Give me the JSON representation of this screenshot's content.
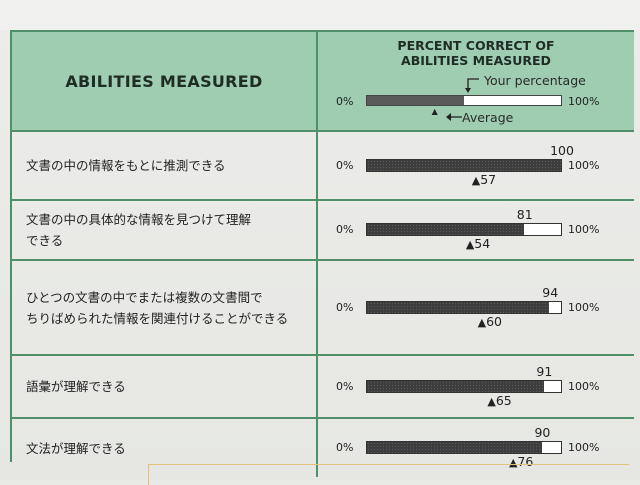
{
  "header": {
    "abilities_title": "ABILITIES MEASURED",
    "percent_title_line1": "PERCENT CORRECT OF",
    "percent_title_line2": "ABILITIES MEASURED",
    "your_percentage": "Your percentage",
    "average": "Average",
    "min_label": "0%",
    "max_label": "100%",
    "legend_your_fraction": 0.5,
    "legend_avg_fraction": 0.35
  },
  "colors": {
    "header_bg": "#9ecdb1",
    "rule": "#4f8f6a",
    "bar_fill": "#3d3d3d"
  },
  "rows": [
    {
      "label": "文書の中の情報をもとに推測できる",
      "label_line2": "",
      "your": "100",
      "avg": "57",
      "your_value": 100,
      "avg_value": 57
    },
    {
      "label": "文書の中の具体的な情報を見つけて理解",
      "label_line2": "できる",
      "your": "81",
      "avg": "54",
      "your_value": 81,
      "avg_value": 54
    },
    {
      "label": "ひとつの文書の中でまたは複数の文書間で",
      "label_line2": "ちりばめられた情報を関連付けることができる",
      "your": "94",
      "avg": "60",
      "your_value": 94,
      "avg_value": 60
    },
    {
      "label": "語彙が理解できる",
      "label_line2": "",
      "your": "91",
      "avg": "65",
      "your_value": 91,
      "avg_value": 65
    },
    {
      "label": "文法が理解できる",
      "label_line2": "",
      "your": "90",
      "avg": "76",
      "your_value": 90,
      "avg_value": 76
    }
  ]
}
